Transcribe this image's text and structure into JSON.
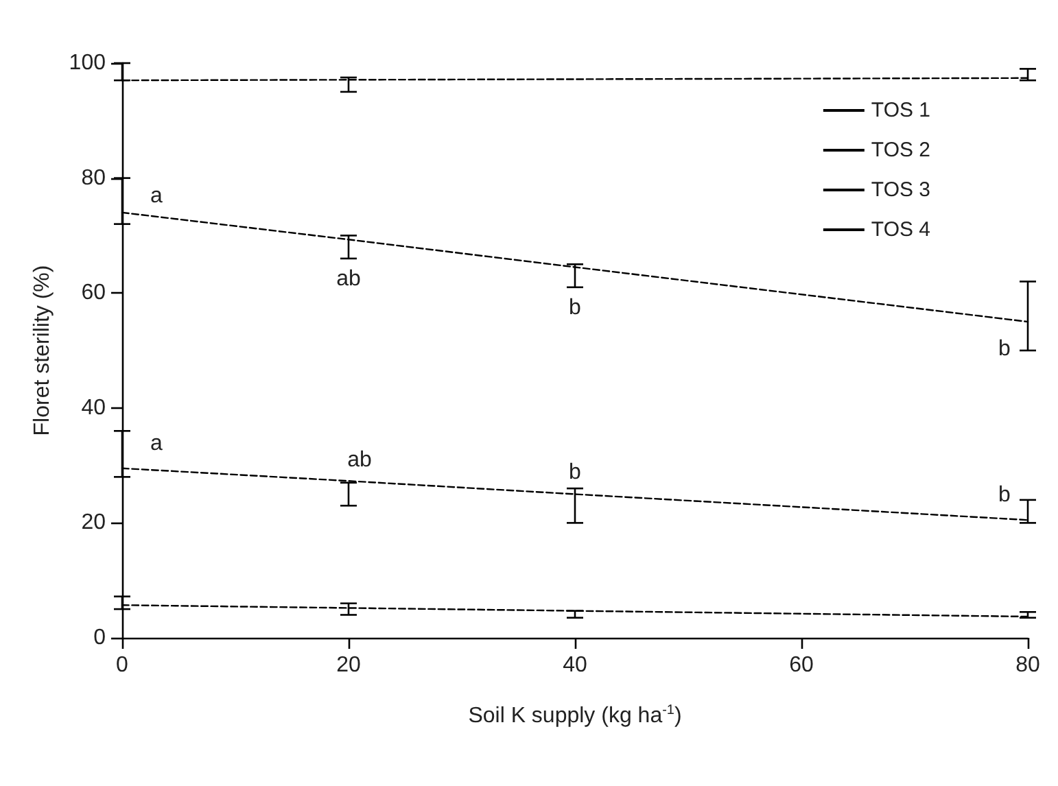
{
  "chart_data": {
    "type": "line",
    "xlabel": "Soil K supply (kg ha$^{-1}$)",
    "ylabel": "Floret sterility (%)",
    "x": [
      0,
      20,
      40,
      80
    ],
    "series": [
      {
        "name": "TOS 1",
        "color": "#000000",
        "values": [
          97,
          97.1,
          97.2,
          97.4
        ],
        "errors": [
          [
            97,
            100
          ],
          [
            95,
            97.5
          ],
          null,
          [
            97,
            99
          ]
        ]
      },
      {
        "name": "TOS 2",
        "color": "#000000",
        "values": [
          74,
          69.3,
          64.5,
          55
        ],
        "errors": [
          [
            72,
            80
          ],
          [
            66,
            70
          ],
          [
            61,
            65
          ],
          [
            50,
            62
          ]
        ]
      },
      {
        "name": "TOS 3",
        "color": "#000000",
        "values": [
          29.5,
          27.3,
          25,
          20.5
        ],
        "errors": [
          [
            28,
            36
          ],
          [
            23,
            27
          ],
          [
            20,
            26
          ],
          [
            20,
            24
          ]
        ]
      },
      {
        "name": "TOS 4",
        "color": "#000000",
        "values": [
          5.7,
          5.2,
          4.7,
          3.7
        ],
        "errors": [
          [
            5,
            7.2
          ],
          [
            4,
            6
          ],
          [
            3.5,
            4.7
          ],
          [
            3.5,
            4.5
          ]
        ]
      }
    ],
    "annotations": [
      {
        "text": "a",
        "x": 0,
        "y": 74
      },
      {
        "text": "ab",
        "x": 20,
        "y": 69.3
      },
      {
        "text": "b",
        "x": 40,
        "y": 64.5
      },
      {
        "text": "b",
        "x": 80,
        "y": 55
      },
      {
        "text": "a",
        "x": 0,
        "y": 29.5
      },
      {
        "text": "ab",
        "x": 20,
        "y": 27.3
      },
      {
        "text": "b",
        "x": 40,
        "y": 25
      },
      {
        "text": "b",
        "x": 80,
        "y": 20.5
      }
    ],
    "xlim": [
      0,
      80
    ],
    "xticks": [
      0,
      20,
      40,
      60,
      80
    ],
    "ylim": [
      0,
      100
    ],
    "yticks": [
      0,
      20,
      40,
      60,
      80,
      100
    ],
    "grid": false,
    "legend": "top right",
    "marker": "none",
    "line_style": "dashed"
  }
}
